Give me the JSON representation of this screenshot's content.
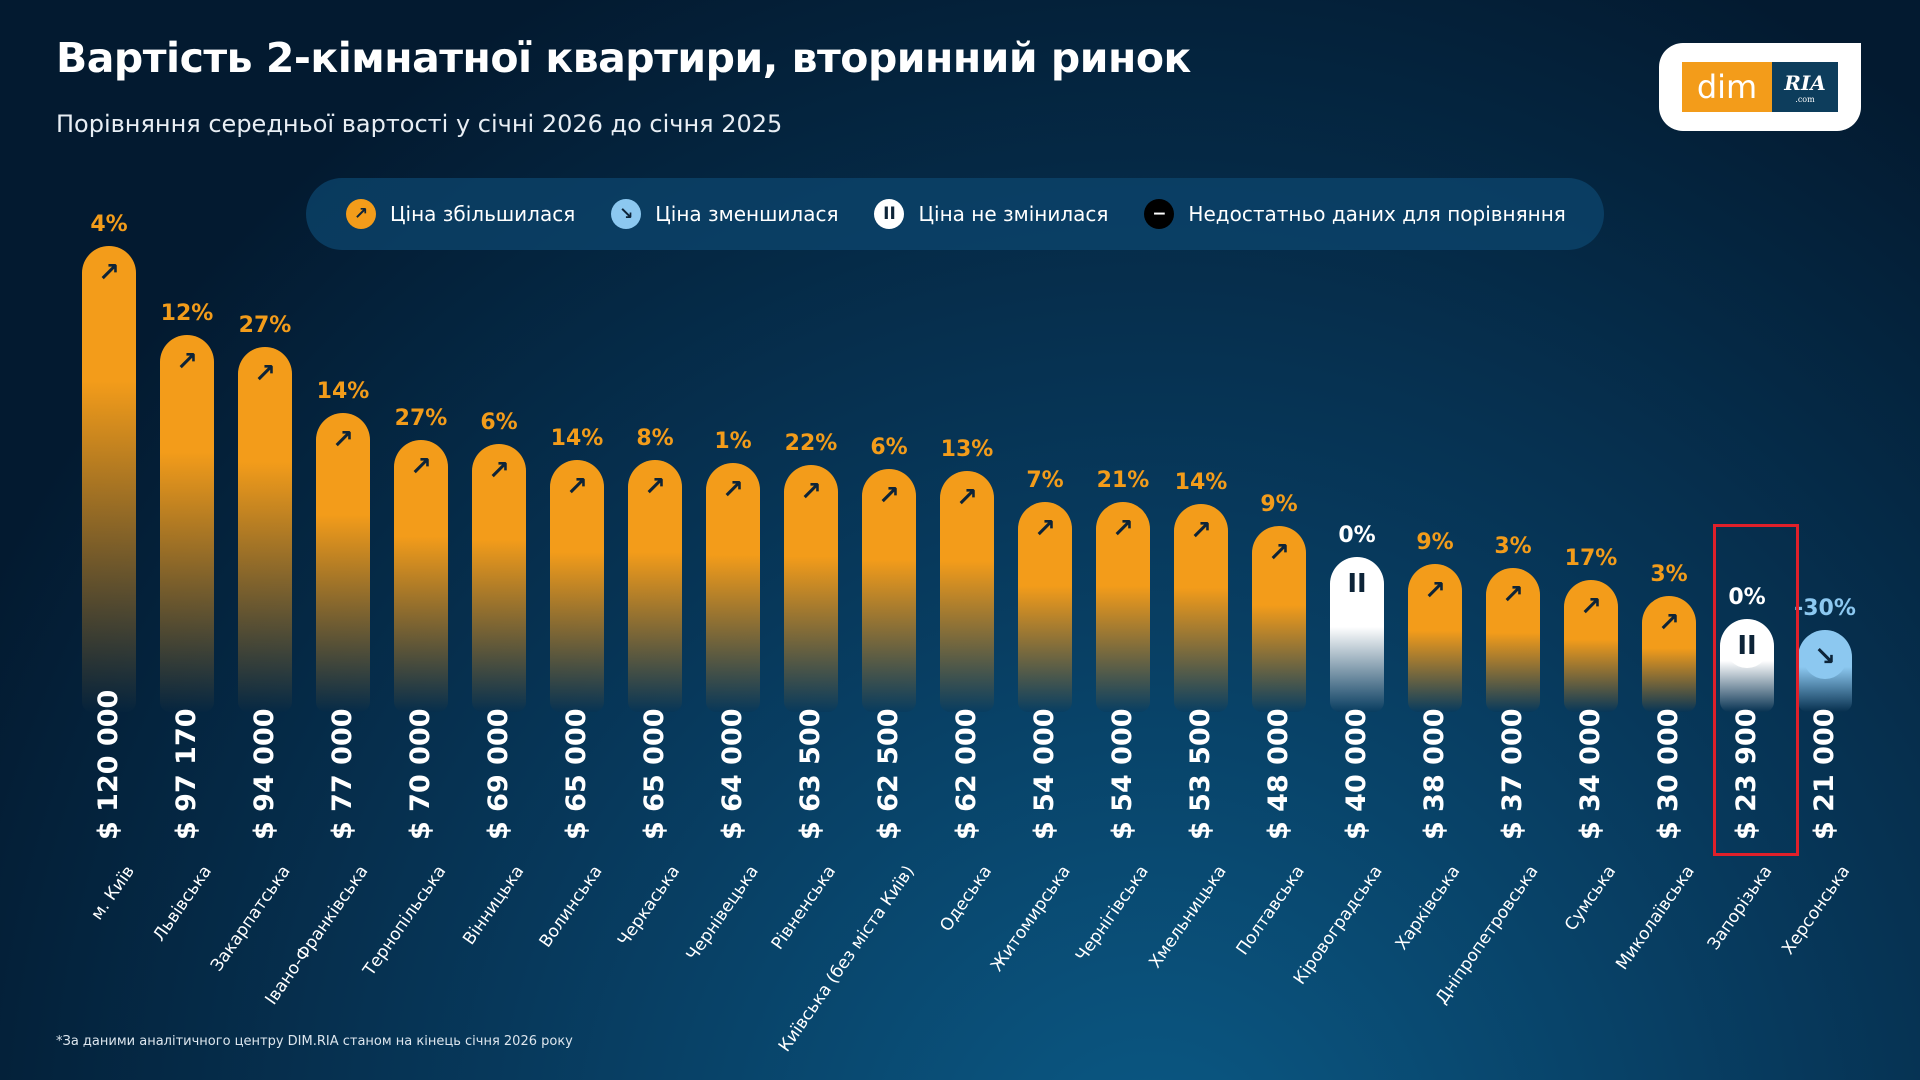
{
  "header": {
    "title": "Вартість 2-кімнатної квартири, вторинний ринок",
    "subtitle": "Порівняння середньої вартості у січні 2026 до січня 2025"
  },
  "logo": {
    "left": "dim",
    "right": "RIA",
    "sub": ".com"
  },
  "legend": [
    {
      "label": "Ціна збільшилася",
      "icon": "arrow-up-right-icon",
      "color": "#f39c1a",
      "glyph": "↗"
    },
    {
      "label": "Ціна зменшилася",
      "icon": "arrow-down-right-icon",
      "color": "#8cc8f0",
      "glyph": "↘"
    },
    {
      "label": "Ціна не змінилася",
      "icon": "pause-icon",
      "color": "#ffffff",
      "glyph": "II"
    },
    {
      "label": "Недостатньо даних для порівняння",
      "icon": "minus-icon",
      "color": "#000000",
      "glyph": "−"
    }
  ],
  "colors": {
    "up": "#f39c1a",
    "down": "#8cc8f0",
    "same": "#ffffff",
    "highlight": "#e0202a"
  },
  "chart_data": {
    "type": "bar",
    "title": "Вартість 2-кімнатної квартири, вторинний ринок",
    "ylabel": "USD",
    "ylim": [
      0,
      120000
    ],
    "categories": [
      "м. Київ",
      "Львівська",
      "Закарпатська",
      "Івано-Франківська",
      "Тернопільська",
      "Вінницька",
      "Волинська",
      "Черкаська",
      "Чернівецька",
      "Рівненська",
      "Київська (без міста Київ)",
      "Одеська",
      "Житомирська",
      "Чернігівська",
      "Хмельницька",
      "Полтавська",
      "Кіровоградська",
      "Харківська",
      "Дніпропетровська",
      "Сумська",
      "Миколаївська",
      "Запорізька",
      "Херсонська"
    ],
    "values": [
      120000,
      97170,
      94000,
      77000,
      70000,
      69000,
      65000,
      65000,
      64000,
      63500,
      62500,
      62000,
      54000,
      54000,
      53500,
      48000,
      40000,
      38000,
      37000,
      34000,
      30000,
      23900,
      21000
    ],
    "value_labels": [
      "$ 120 000",
      "$ 97 170",
      "$ 94 000",
      "$ 77 000",
      "$ 70 000",
      "$ 69 000",
      "$ 65 000",
      "$ 65 000",
      "$ 64 000",
      "$ 63 500",
      "$ 62 500",
      "$ 62 000",
      "$ 54 000",
      "$ 54 000",
      "$ 53 500",
      "$ 48 000",
      "$ 40 000",
      "$ 38 000",
      "$ 37 000",
      "$ 34 000",
      "$ 30 000",
      "$ 23 900",
      "$ 21 000"
    ],
    "change_labels": [
      "4%",
      "12%",
      "27%",
      "14%",
      "27%",
      "6%",
      "14%",
      "8%",
      "1%",
      "22%",
      "6%",
      "13%",
      "7%",
      "21%",
      "14%",
      "9%",
      "0%",
      "9%",
      "3%",
      "17%",
      "3%",
      "0%",
      "-30%"
    ],
    "change_pct": [
      4,
      12,
      27,
      14,
      27,
      6,
      14,
      8,
      1,
      22,
      6,
      13,
      7,
      21,
      14,
      9,
      0,
      9,
      3,
      17,
      3,
      0,
      -30
    ],
    "highlighted": "Запорізька"
  },
  "footnote": "*За даними аналітичного центру DIM.RIA станом на кінець січня 2026 року"
}
